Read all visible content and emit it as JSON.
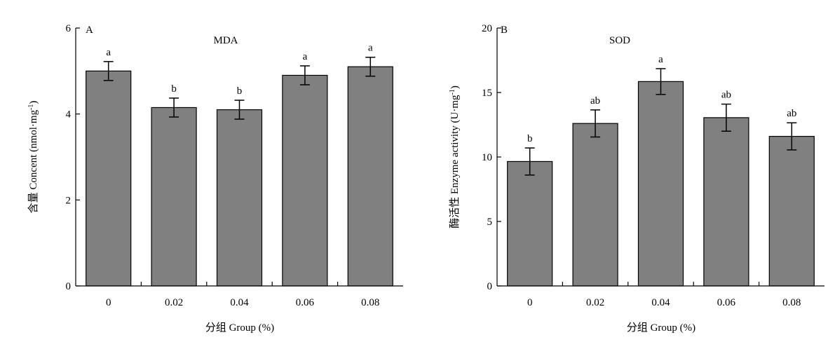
{
  "chart_data": [
    {
      "type": "bar",
      "panel": "A",
      "title": "MDA",
      "xlabel": "分组 Group (%)",
      "ylabel": "含量 Concent (nmol·mg",
      "ylabel_sup": "-1",
      "ylabel_close": ")",
      "categories": [
        "0",
        "0.02",
        "0.04",
        "0.06",
        "0.08"
      ],
      "values": [
        5.0,
        4.15,
        4.1,
        4.9,
        5.1
      ],
      "errors": [
        0.22,
        0.22,
        0.22,
        0.22,
        0.22
      ],
      "significance": [
        "a",
        "b",
        "b",
        "a",
        "a"
      ],
      "ylim": [
        0,
        6
      ],
      "yticks": [
        0,
        2,
        4,
        6
      ],
      "bar_color": "#808080",
      "grid": false
    },
    {
      "type": "bar",
      "panel": "B",
      "title": "SOD",
      "xlabel": "分组 Group (%)",
      "ylabel": "酶活性 Enzyme activity (U·mg",
      "ylabel_sup": "-1",
      "ylabel_close": ")",
      "categories": [
        "0",
        "0.02",
        "0.04",
        "0.06",
        "0.08"
      ],
      "values": [
        9.65,
        12.6,
        15.85,
        13.05,
        11.6
      ],
      "errors": [
        1.05,
        1.05,
        1.0,
        1.05,
        1.05
      ],
      "significance": [
        "b",
        "ab",
        "a",
        "ab",
        "ab"
      ],
      "ylim": [
        0,
        20
      ],
      "yticks": [
        0,
        5,
        10,
        15,
        20
      ],
      "bar_color": "#808080",
      "grid": false
    }
  ]
}
